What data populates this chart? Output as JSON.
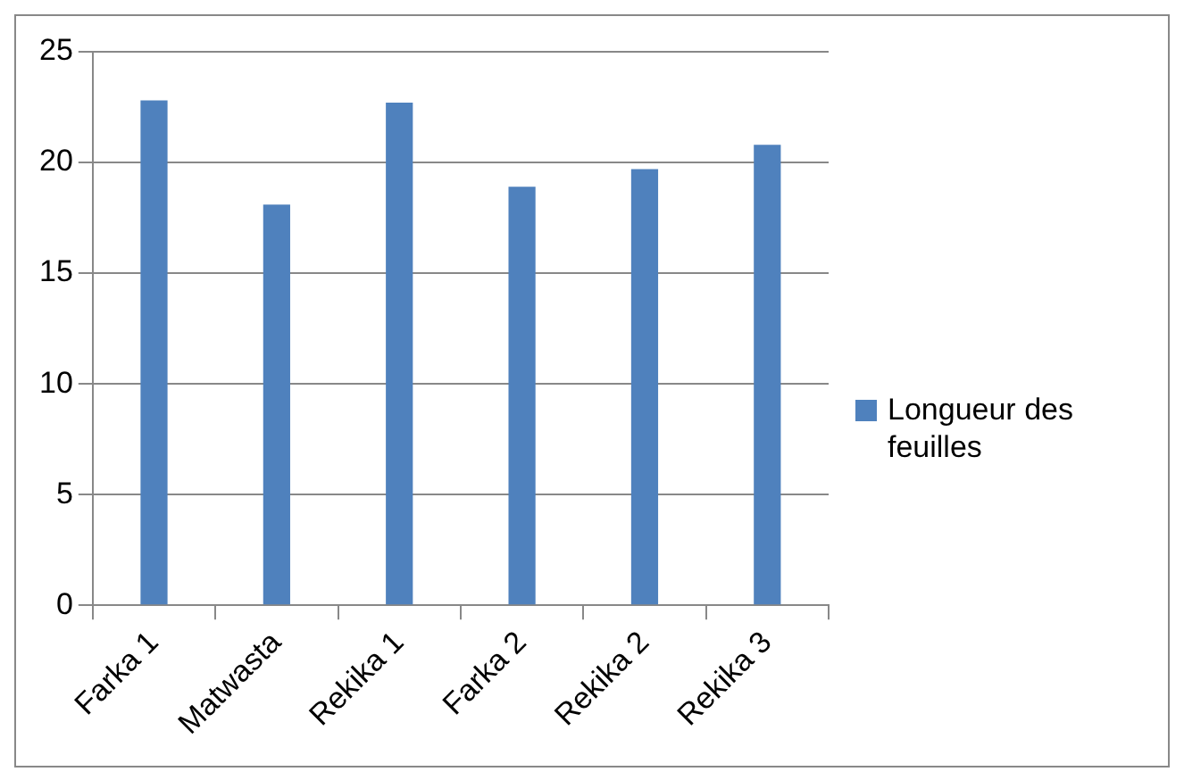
{
  "chart_data": {
    "type": "bar",
    "categories": [
      "Farka 1",
      "Matwasta",
      "Rekika 1",
      "Farka 2",
      "Rekika 2",
      "Rekika 3"
    ],
    "series": [
      {
        "name": "Longueur des feuilles",
        "color": "#4f81bd",
        "values": [
          22.8,
          18.1,
          22.7,
          18.9,
          19.7,
          20.8
        ]
      }
    ],
    "ylim": [
      0,
      25
    ],
    "yticks": [
      0,
      5,
      10,
      15,
      20,
      25
    ],
    "grid": "y",
    "legend": "right"
  }
}
